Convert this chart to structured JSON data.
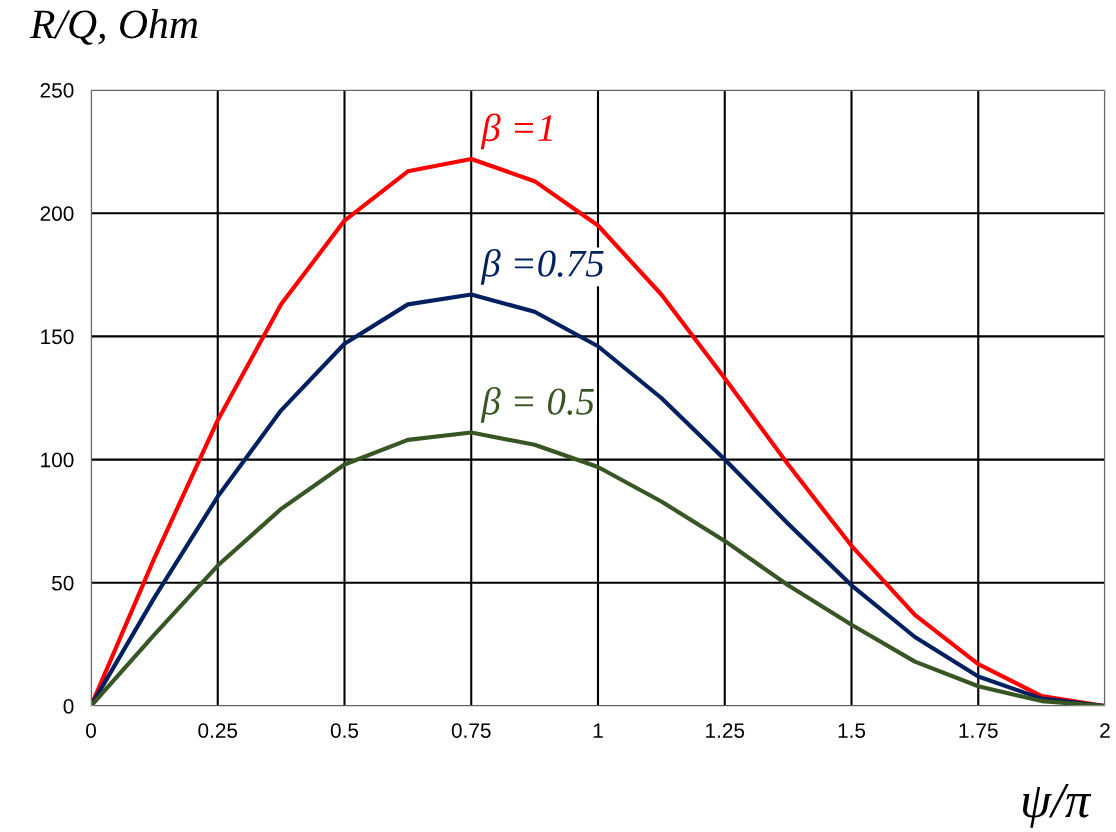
{
  "chart_data": {
    "type": "line",
    "ylabel": "R/Q, Ohm",
    "xlabel": "ψ/π",
    "x": [
      0,
      0.125,
      0.25,
      0.375,
      0.5,
      0.625,
      0.75,
      0.875,
      1,
      1.125,
      1.25,
      1.375,
      1.5,
      1.625,
      1.75,
      1.875,
      2
    ],
    "series": [
      {
        "name": "β =1",
        "color": "#ff0000",
        "values": [
          0,
          60,
          116,
          163,
          197,
          217,
          222,
          213,
          195,
          167,
          133,
          98,
          65,
          37,
          17,
          4,
          0
        ]
      },
      {
        "name": "β =0.75",
        "color": "#002060",
        "values": [
          0,
          44,
          85,
          120,
          147,
          163,
          167,
          160,
          146,
          125,
          100,
          74,
          49,
          28,
          12,
          3,
          0
        ]
      },
      {
        "name": "β = 0.5",
        "color": "#375623",
        "values": [
          0,
          29,
          57,
          80,
          98,
          108,
          111,
          106,
          97,
          83,
          67,
          49,
          33,
          18,
          8,
          2,
          0
        ]
      }
    ],
    "xlim": [
      0,
      2
    ],
    "xticks": [
      0,
      0.25,
      0.5,
      0.75,
      1,
      1.25,
      1.5,
      1.75,
      2
    ],
    "ylim": [
      0,
      250
    ],
    "yticks": [
      0,
      50,
      100,
      150,
      200,
      250
    ],
    "grid": true,
    "legend": false,
    "marker": "none",
    "line_style": "solid"
  }
}
